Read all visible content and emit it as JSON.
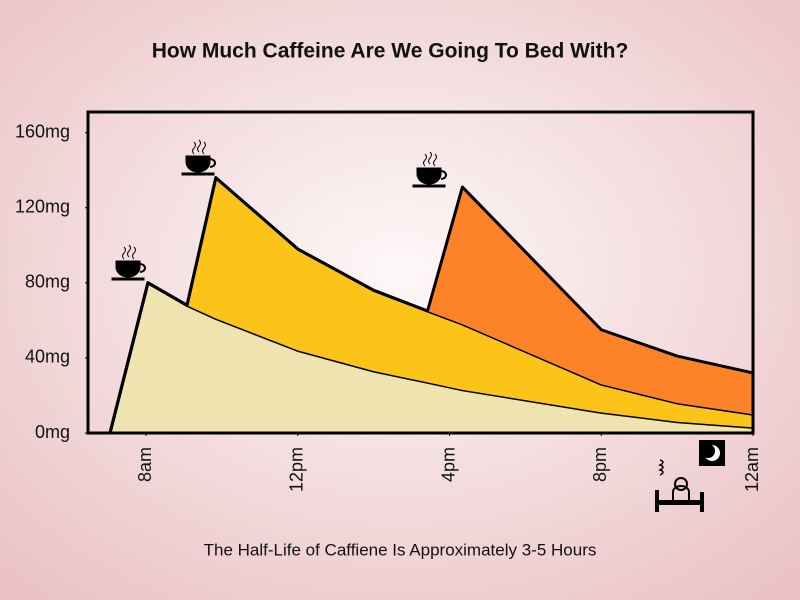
{
  "chart_data": {
    "type": "stacked_area",
    "title": "How Much Caffeine Are We Going To Bed With?",
    "subtitle": "The Half-Life of Caffiene Is Approximately 3-5 Hours",
    "x": [
      7.05,
      8.05,
      9.08,
      9.84,
      12,
      14,
      15.42,
      16.34,
      20,
      22,
      24
    ],
    "series": [
      {
        "color": "#efe3b0",
        "values": [
          0,
          80,
          68,
          61,
          44,
          33,
          27,
          23,
          11,
          6,
          3
        ]
      },
      {
        "color": "#fcc319",
        "values": [
          0,
          0,
          0,
          75,
          54,
          43,
          38,
          35,
          15,
          10,
          7
        ]
      },
      {
        "color": "#fd8228",
        "values": [
          0,
          0,
          0,
          0,
          0,
          0,
          0,
          73,
          29,
          25,
          22
        ]
      }
    ],
    "xlim": [
      6.47,
      24
    ],
    "xticks": [
      {
        "value": 8,
        "label": "8am"
      },
      {
        "value": 12,
        "label": "12pm"
      },
      {
        "value": 16,
        "label": "4pm"
      },
      {
        "value": 20,
        "label": "8pm"
      },
      {
        "value": 24,
        "label": "12am"
      }
    ],
    "ylim": [
      0,
      171
    ],
    "yticks": [
      {
        "value": 0,
        "label": "0mg"
      },
      {
        "value": 40,
        "label": "40mg"
      },
      {
        "value": 80,
        "label": "80mg"
      },
      {
        "value": 120,
        "label": "120mg"
      },
      {
        "value": 160,
        "label": "160mg"
      }
    ]
  }
}
